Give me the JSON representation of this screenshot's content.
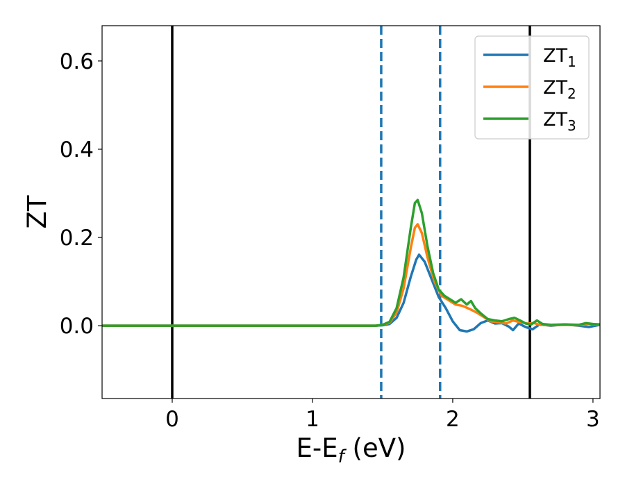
{
  "chart_data": {
    "type": "line",
    "xlabel": "E-E",
    "xlabel_sub": "f",
    "xlabel_unit": " (eV)",
    "ylabel": "ZT",
    "xlim": [
      -0.5,
      3.05
    ],
    "ylim": [
      -0.165,
      0.68
    ],
    "xticks": [
      0,
      1,
      2,
      3
    ],
    "xtick_labels": [
      "0",
      "1",
      "2",
      "3"
    ],
    "yticks": [
      0.0,
      0.2,
      0.4,
      0.6
    ],
    "ytick_labels": [
      "0.0",
      "0.2",
      "0.4",
      "0.6"
    ],
    "grid": false,
    "legend_position": "top-right",
    "vertical_lines": [
      {
        "x": 0.0,
        "style": "solid",
        "color": "#000000"
      },
      {
        "x": 2.55,
        "style": "solid",
        "color": "#000000"
      },
      {
        "x": 1.49,
        "style": "dashed",
        "color": "#1f77b4"
      },
      {
        "x": 1.91,
        "style": "dashed",
        "color": "#1f77b4"
      }
    ],
    "series": [
      {
        "name": "ZT",
        "name_sub": "1",
        "color": "#1f77b4",
        "points": [
          [
            -0.5,
            0
          ],
          [
            1.45,
            0
          ],
          [
            1.5,
            0.001
          ],
          [
            1.55,
            0.004
          ],
          [
            1.6,
            0.018
          ],
          [
            1.65,
            0.052
          ],
          [
            1.7,
            0.11
          ],
          [
            1.74,
            0.15
          ],
          [
            1.76,
            0.161
          ],
          [
            1.8,
            0.145
          ],
          [
            1.85,
            0.105
          ],
          [
            1.9,
            0.065
          ],
          [
            1.95,
            0.04
          ],
          [
            2.0,
            0.01
          ],
          [
            2.05,
            -0.01
          ],
          [
            2.1,
            -0.013
          ],
          [
            2.15,
            -0.008
          ],
          [
            2.2,
            0.006
          ],
          [
            2.25,
            0.012
          ],
          [
            2.3,
            0.005
          ],
          [
            2.35,
            0.006
          ],
          [
            2.4,
            -0.002
          ],
          [
            2.43,
            -0.01
          ],
          [
            2.47,
            0.005
          ],
          [
            2.52,
            -0.003
          ],
          [
            2.57,
            -0.008
          ],
          [
            2.62,
            0.003
          ],
          [
            2.7,
            0
          ],
          [
            2.8,
            0.003
          ],
          [
            2.9,
            0
          ],
          [
            2.97,
            -0.003
          ],
          [
            3.05,
            0.002
          ]
        ]
      },
      {
        "name": "ZT",
        "name_sub": "2",
        "color": "#ff7f0e",
        "points": [
          [
            -0.5,
            0
          ],
          [
            1.45,
            0
          ],
          [
            1.5,
            0.002
          ],
          [
            1.55,
            0.007
          ],
          [
            1.6,
            0.03
          ],
          [
            1.65,
            0.085
          ],
          [
            1.7,
            0.175
          ],
          [
            1.73,
            0.222
          ],
          [
            1.75,
            0.23
          ],
          [
            1.78,
            0.21
          ],
          [
            1.82,
            0.155
          ],
          [
            1.87,
            0.1
          ],
          [
            1.92,
            0.068
          ],
          [
            1.97,
            0.058
          ],
          [
            2.02,
            0.048
          ],
          [
            2.07,
            0.045
          ],
          [
            2.12,
            0.038
          ],
          [
            2.17,
            0.03
          ],
          [
            2.22,
            0.02
          ],
          [
            2.27,
            0.01
          ],
          [
            2.32,
            0.008
          ],
          [
            2.38,
            0.005
          ],
          [
            2.43,
            0.012
          ],
          [
            2.48,
            0.008
          ],
          [
            2.53,
            0.005
          ],
          [
            2.58,
            0.006
          ],
          [
            2.62,
            0.002
          ],
          [
            2.7,
            0.001
          ],
          [
            2.8,
            0.002
          ],
          [
            2.9,
            0.001
          ],
          [
            2.97,
            0.004
          ],
          [
            3.05,
            0.002
          ]
        ]
      },
      {
        "name": "ZT",
        "name_sub": "3",
        "color": "#2ca02c",
        "points": [
          [
            -0.5,
            0
          ],
          [
            1.45,
            0
          ],
          [
            1.5,
            0.002
          ],
          [
            1.55,
            0.009
          ],
          [
            1.6,
            0.04
          ],
          [
            1.65,
            0.11
          ],
          [
            1.7,
            0.22
          ],
          [
            1.73,
            0.278
          ],
          [
            1.75,
            0.285
          ],
          [
            1.78,
            0.255
          ],
          [
            1.82,
            0.18
          ],
          [
            1.86,
            0.12
          ],
          [
            1.9,
            0.082
          ],
          [
            1.94,
            0.068
          ],
          [
            1.98,
            0.06
          ],
          [
            2.02,
            0.052
          ],
          [
            2.06,
            0.06
          ],
          [
            2.1,
            0.048
          ],
          [
            2.13,
            0.056
          ],
          [
            2.16,
            0.04
          ],
          [
            2.2,
            0.028
          ],
          [
            2.25,
            0.015
          ],
          [
            2.3,
            0.012
          ],
          [
            2.35,
            0.01
          ],
          [
            2.4,
            0.015
          ],
          [
            2.44,
            0.018
          ],
          [
            2.48,
            0.012
          ],
          [
            2.52,
            0.005
          ],
          [
            2.56,
            0.003
          ],
          [
            2.6,
            0.012
          ],
          [
            2.64,
            0.004
          ],
          [
            2.7,
            0.002
          ],
          [
            2.8,
            0.003
          ],
          [
            2.9,
            0.002
          ],
          [
            2.95,
            0.006
          ],
          [
            3.0,
            0.004
          ],
          [
            3.05,
            0.003
          ]
        ]
      }
    ]
  }
}
